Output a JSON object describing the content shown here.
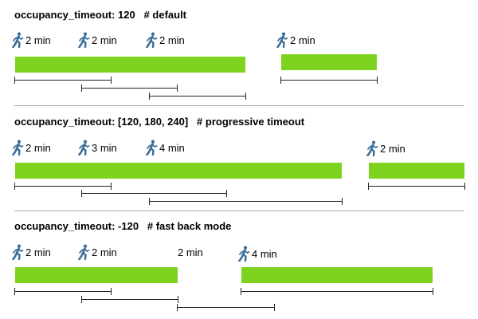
{
  "sections": [
    {
      "title": "occupancy_timeout: 120   # default",
      "motions": [
        {
          "label": "2 min",
          "icon": true
        },
        {
          "label": "2 min",
          "icon": true
        },
        {
          "label": "2 min",
          "icon": true
        },
        {
          "label": "2 min",
          "icon": true
        }
      ]
    },
    {
      "title": "occupancy_timeout: [120, 180, 240]   # progressive timeout",
      "motions": [
        {
          "label": "2 min",
          "icon": true
        },
        {
          "label": "3 min",
          "icon": true
        },
        {
          "label": "4 min",
          "icon": true
        },
        {
          "label": "2 min",
          "icon": true
        }
      ]
    },
    {
      "title": "occupancy_timeout: -120   # fast back mode",
      "motions": [
        {
          "label": "2 min",
          "icon": true
        },
        {
          "label": "2 min",
          "icon": true
        },
        {
          "label": "2 min",
          "icon": false
        },
        {
          "label": "4 min",
          "icon": true
        }
      ]
    }
  ],
  "colors": {
    "occupied_bar": "#7ed321",
    "icon": "#3b6e99",
    "separator": "#aaaaaa"
  },
  "icons": {
    "motion": "walking-person-icon"
  }
}
